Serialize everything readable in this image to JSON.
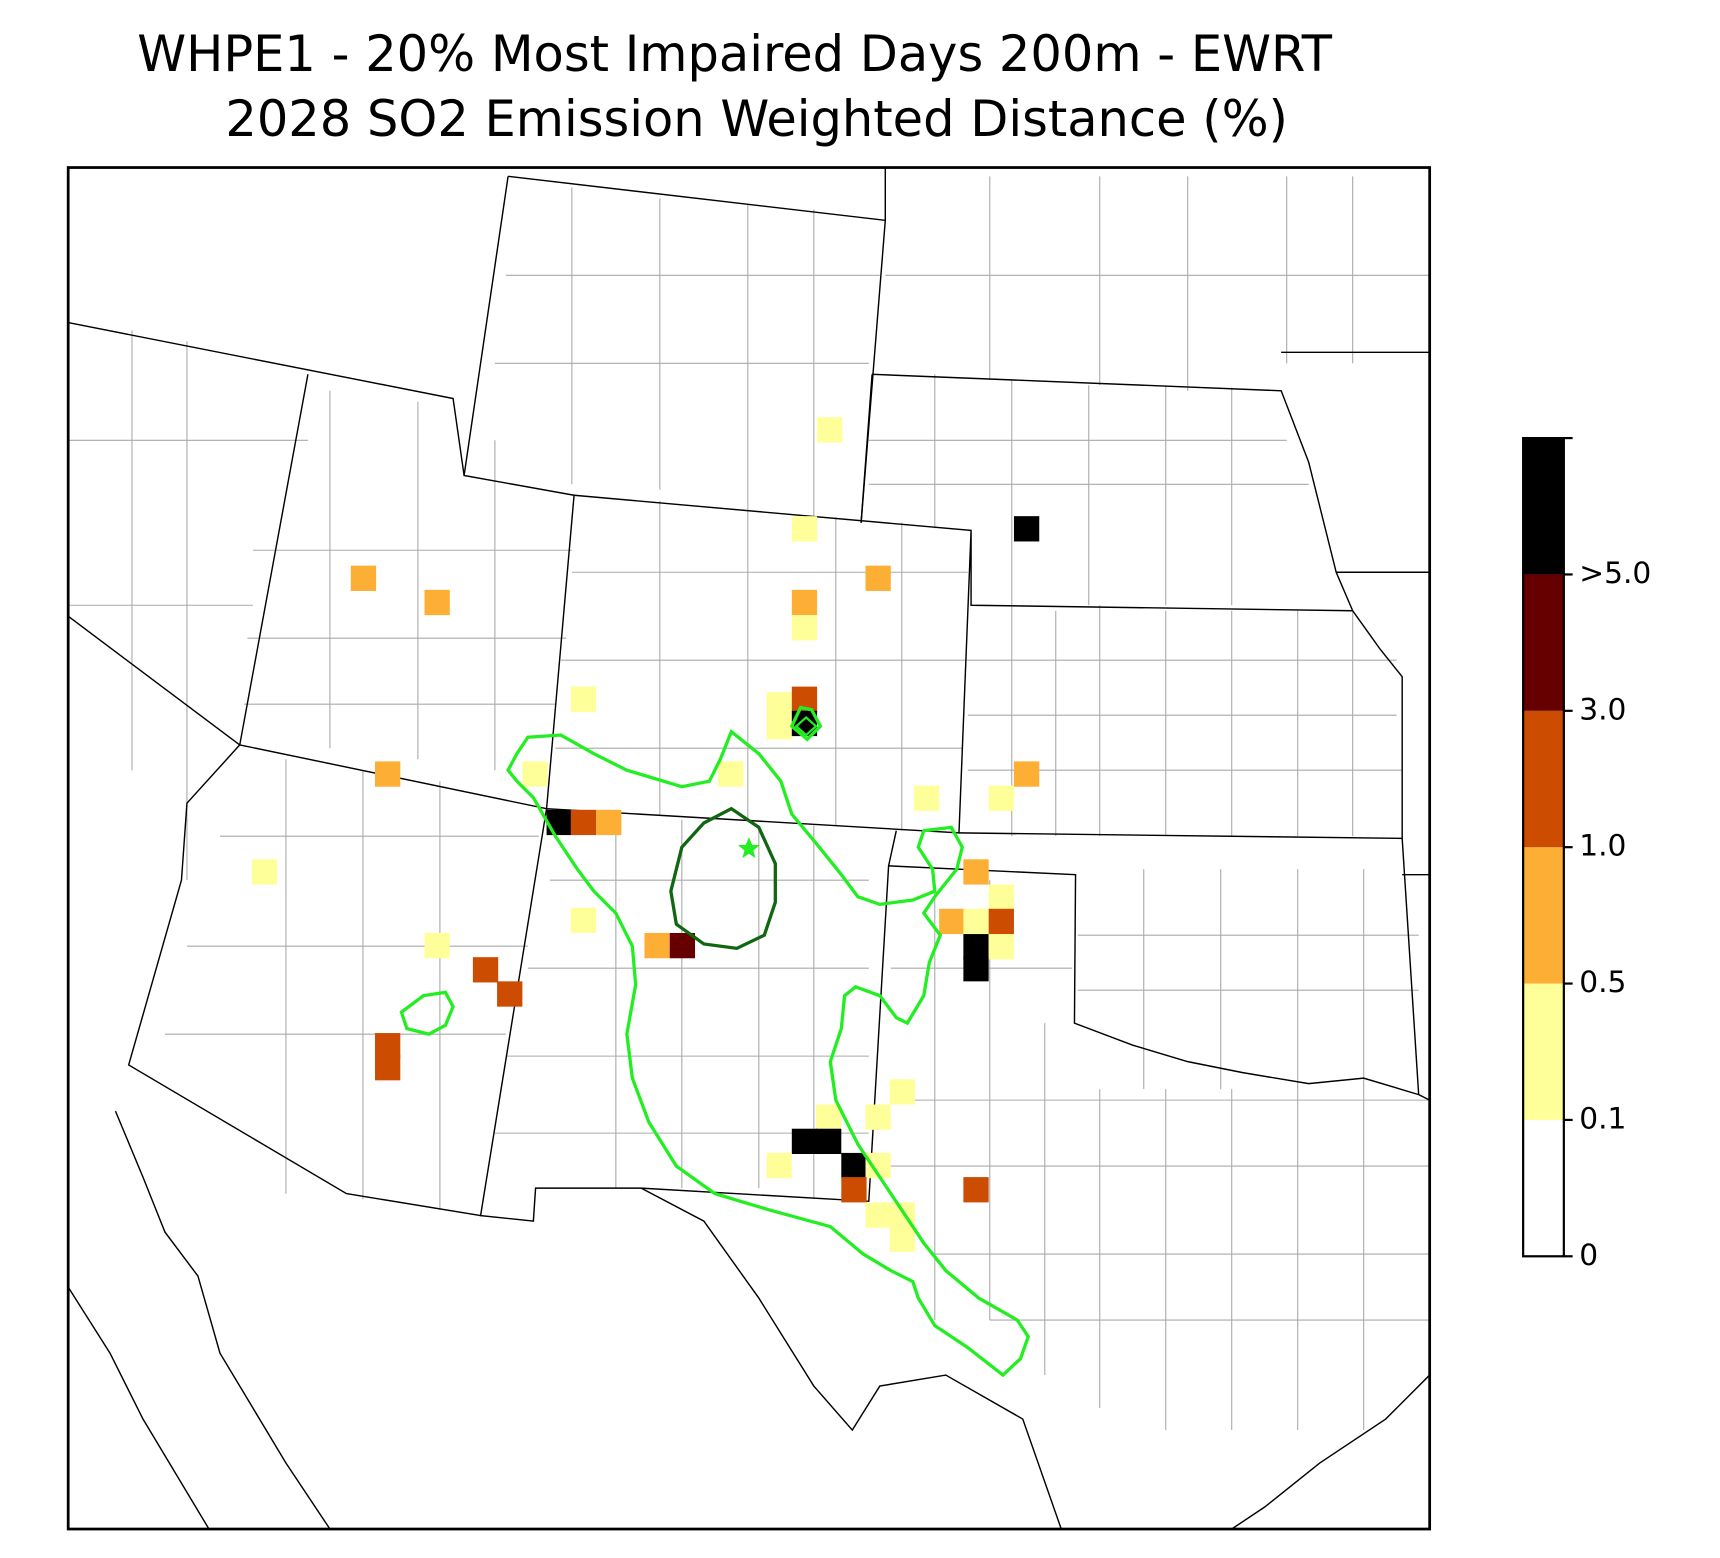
{
  "title": [
    "WHPE1 - 20% Most Impaired Days 200m - EWRT",
    "2028 SO2 Emission Weighted Distance (%)"
  ],
  "colorbar": {
    "ticks": [
      0,
      0.1,
      0.5,
      {
        "value": 1,
        "label": "1.0"
      },
      {
        "value": 3,
        "label": "3.0"
      },
      {
        "value": 5,
        "label": ">5.0"
      }
    ],
    "colors": [
      "#ffffff",
      "#ffff99",
      "#fdae35",
      "#cc4c02",
      "#660000",
      "#000000"
    ]
  }
}
